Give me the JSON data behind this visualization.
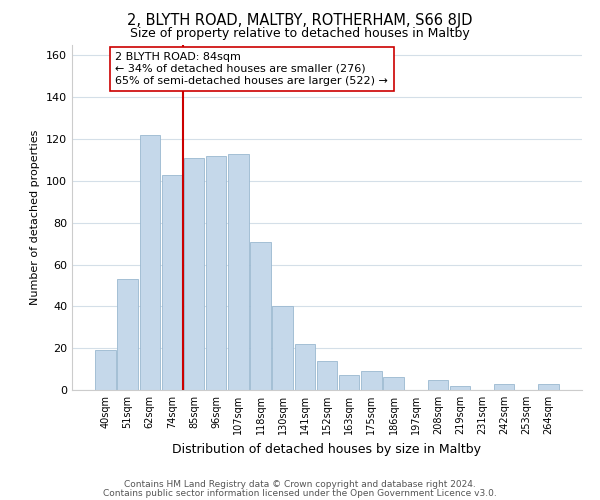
{
  "title": "2, BLYTH ROAD, MALTBY, ROTHERHAM, S66 8JD",
  "subtitle": "Size of property relative to detached houses in Maltby",
  "xlabel": "Distribution of detached houses by size in Maltby",
  "ylabel": "Number of detached properties",
  "bar_labels": [
    "40sqm",
    "51sqm",
    "62sqm",
    "74sqm",
    "85sqm",
    "96sqm",
    "107sqm",
    "118sqm",
    "130sqm",
    "141sqm",
    "152sqm",
    "163sqm",
    "175sqm",
    "186sqm",
    "197sqm",
    "208sqm",
    "219sqm",
    "231sqm",
    "242sqm",
    "253sqm",
    "264sqm"
  ],
  "bar_values": [
    19,
    53,
    122,
    103,
    111,
    112,
    113,
    71,
    40,
    22,
    14,
    7,
    9,
    6,
    0,
    5,
    2,
    0,
    3,
    0,
    3
  ],
  "bar_color": "#c5d8ea",
  "bar_edge_color": "#9ab8d0",
  "vline_x_index": 4,
  "vline_color": "#cc0000",
  "annotation_text": "2 BLYTH ROAD: 84sqm\n← 34% of detached houses are smaller (276)\n65% of semi-detached houses are larger (522) →",
  "annotation_box_color": "#ffffff",
  "annotation_box_edge": "#cc0000",
  "ylim": [
    0,
    165
  ],
  "yticks": [
    0,
    20,
    40,
    60,
    80,
    100,
    120,
    140,
    160
  ],
  "footer_line1": "Contains HM Land Registry data © Crown copyright and database right 2024.",
  "footer_line2": "Contains public sector information licensed under the Open Government Licence v3.0.",
  "grid_color": "#d4dfe8",
  "background_color": "#ffffff",
  "title_fontsize": 10.5,
  "subtitle_fontsize": 9,
  "annotation_fontsize": 8,
  "footer_fontsize": 6.5,
  "xlabel_fontsize": 9,
  "ylabel_fontsize": 8
}
